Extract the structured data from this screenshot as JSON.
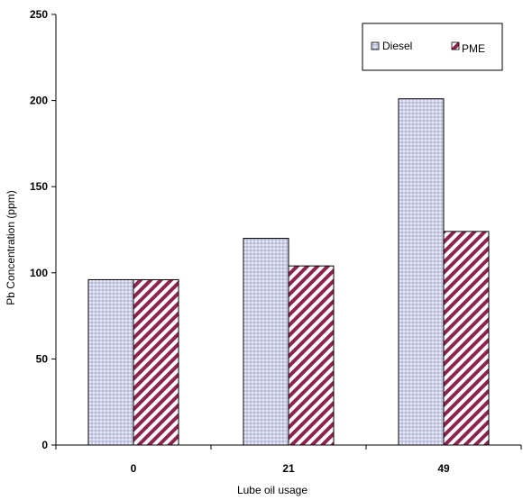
{
  "chart_data": {
    "type": "bar",
    "title": "",
    "xlabel": "Lube oil usage",
    "ylabel": "Pb Concentration (ppm)",
    "categories": [
      "0",
      "21",
      "49"
    ],
    "series": [
      {
        "name": "Diesel",
        "values": [
          96,
          120,
          201
        ],
        "color": "#9a9cc8",
        "pattern": "dotted-grid"
      },
      {
        "name": "PME",
        "values": [
          96,
          104,
          124
        ],
        "color": "#8e2350",
        "pattern": "diagonal-hatch"
      }
    ],
    "ylim": [
      0,
      250
    ],
    "yticks": [
      "0",
      "50",
      "100",
      "150",
      "200",
      "250"
    ],
    "grid": false,
    "legend": "top-right"
  }
}
